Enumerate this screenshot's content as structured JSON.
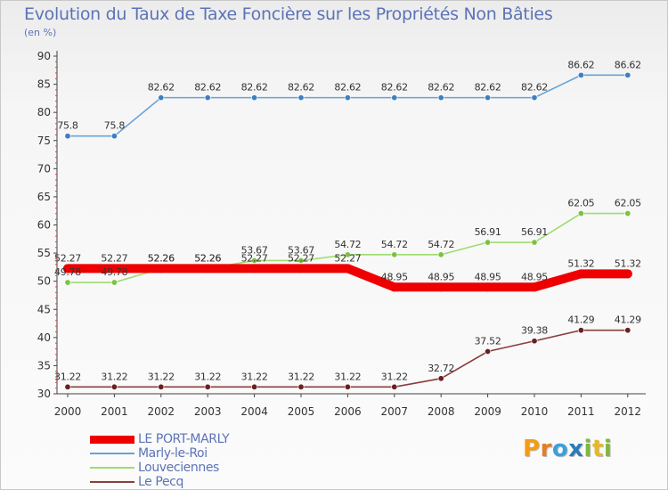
{
  "title": "Evolution du Taux de Taxe Foncière sur les Propriétés Non Bâties",
  "unit_label": "(en %)",
  "logo": {
    "text": "Proxiti",
    "letters": [
      {
        "ch": "P",
        "color": "#f39c12"
      },
      {
        "ch": "r",
        "color": "#e67e22"
      },
      {
        "ch": "o",
        "color": "#3aa0dc"
      },
      {
        "ch": "x",
        "color": "#2c7bb6"
      },
      {
        "ch": "i",
        "color": "#7fb83a"
      },
      {
        "ch": "t",
        "color": "#e8b824"
      },
      {
        "ch": "i",
        "color": "#7fb83a"
      }
    ]
  },
  "chart_data": {
    "type": "line",
    "title": "Evolution du Taux de Taxe Foncière sur les Propriétés Non Bâties",
    "ylabel": "(en %)",
    "xlabel": "",
    "x": [
      "2000",
      "2001",
      "2002",
      "2003",
      "2004",
      "2005",
      "2006",
      "2007",
      "2008",
      "2009",
      "2010",
      "2011",
      "2012"
    ],
    "ylim": [
      30,
      90
    ],
    "yticks": [
      30,
      35,
      40,
      45,
      50,
      55,
      60,
      65,
      70,
      75,
      80,
      85,
      90
    ],
    "grid": false,
    "legend_position": "bottom-left",
    "series": [
      {
        "name": "LE PORT-MARLY",
        "color": "#ee0000",
        "highlight": true,
        "values": [
          52.27,
          52.27,
          52.26,
          52.26,
          52.27,
          52.27,
          52.27,
          48.95,
          48.95,
          48.95,
          48.95,
          51.32,
          51.32
        ],
        "labels": [
          "52.27",
          "52.27",
          "52.26",
          "52.26",
          "52.27",
          "52.27",
          "52.27",
          "48.95",
          "48.95",
          "48.95",
          "48.95",
          "51.32",
          "51.32"
        ]
      },
      {
        "name": "Marly-le-Roi",
        "color": "#6aa3d6",
        "marker": "#3d7fc1",
        "values": [
          75.8,
          75.8,
          82.62,
          82.62,
          82.62,
          82.62,
          82.62,
          82.62,
          82.62,
          82.62,
          82.62,
          86.62,
          86.62
        ],
        "labels": [
          "75.8",
          "75.8",
          "82.62",
          "82.62",
          "82.62",
          "82.62",
          "82.62",
          "82.62",
          "82.62",
          "82.62",
          "82.62",
          "86.62",
          "86.62"
        ]
      },
      {
        "name": "Louveciennes",
        "color": "#9fdc6f",
        "marker": "#7cc242",
        "values": [
          49.78,
          49.78,
          52.26,
          52.26,
          53.67,
          53.67,
          54.72,
          54.72,
          54.72,
          56.91,
          56.91,
          62.05,
          62.05
        ],
        "labels": [
          "49.78",
          "49.78",
          "52.26",
          "52.26",
          "53.67",
          "53.67",
          "54.72",
          "54.72",
          "54.72",
          "56.91",
          "56.91",
          "62.05",
          "62.05"
        ]
      },
      {
        "name": "Le Pecq",
        "color": "#8a3e3e",
        "marker": "#6b1f1f",
        "values": [
          31.22,
          31.22,
          31.22,
          31.22,
          31.22,
          31.22,
          31.22,
          31.22,
          32.72,
          37.52,
          39.38,
          41.29,
          41.29
        ],
        "labels": [
          "31.22",
          "31.22",
          "31.22",
          "31.22",
          "31.22",
          "31.22",
          "31.22",
          "31.22",
          "32.72",
          "37.52",
          "39.38",
          "41.29",
          "41.29"
        ]
      }
    ]
  }
}
